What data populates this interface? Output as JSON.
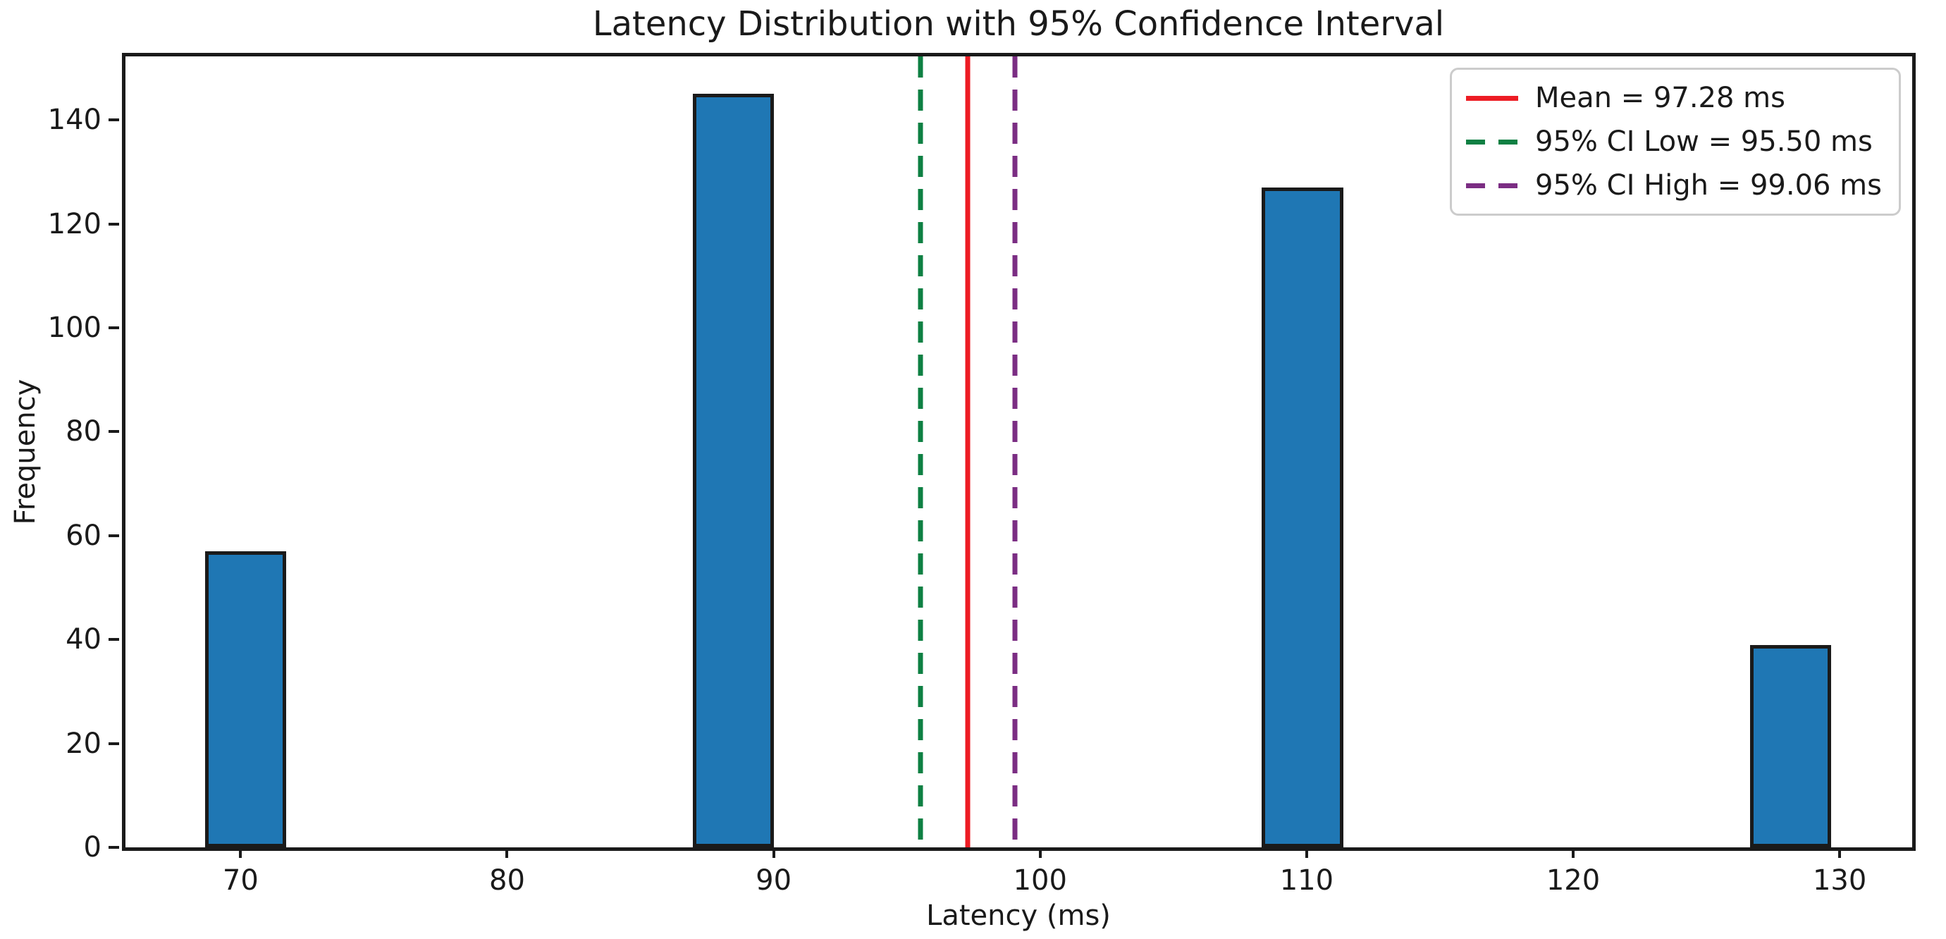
{
  "chart_data": {
    "type": "bar",
    "subtype": "histogram",
    "title": "Latency Distribution with 95% Confidence Interval",
    "xlabel": "Latency (ms)",
    "ylabel": "Frequency",
    "grid": false,
    "legend_position": "upper right",
    "xlim": [
      65.68,
      132.72
    ],
    "ylim": [
      0,
      152.25
    ],
    "xticks": [
      70,
      80,
      90,
      100,
      110,
      120,
      130
    ],
    "yticks": [
      0,
      20,
      40,
      60,
      80,
      100,
      120,
      140
    ],
    "bar_color": "#1f77b4",
    "bar_edge_color": "#1a1a1a",
    "bins": [
      {
        "start": 68.66,
        "end": 71.71,
        "count": 57
      },
      {
        "start": 86.97,
        "end": 90.02,
        "count": 145
      },
      {
        "start": 108.32,
        "end": 111.37,
        "count": 127
      },
      {
        "start": 126.63,
        "end": 129.68,
        "count": 39
      }
    ],
    "vlines": [
      {
        "name": "mean-line",
        "value": 97.28,
        "color": "#ed1c24",
        "style": "solid",
        "label": "Mean = 97.28 ms"
      },
      {
        "name": "ci-low-line",
        "value": 95.5,
        "color": "#0e8043",
        "style": "dashed",
        "label": "95% CI Low = 95.50 ms"
      },
      {
        "name": "ci-high-line",
        "value": 99.06,
        "color": "#7b2d83",
        "style": "dashed",
        "label": "95% CI High = 99.06 ms"
      }
    ]
  }
}
